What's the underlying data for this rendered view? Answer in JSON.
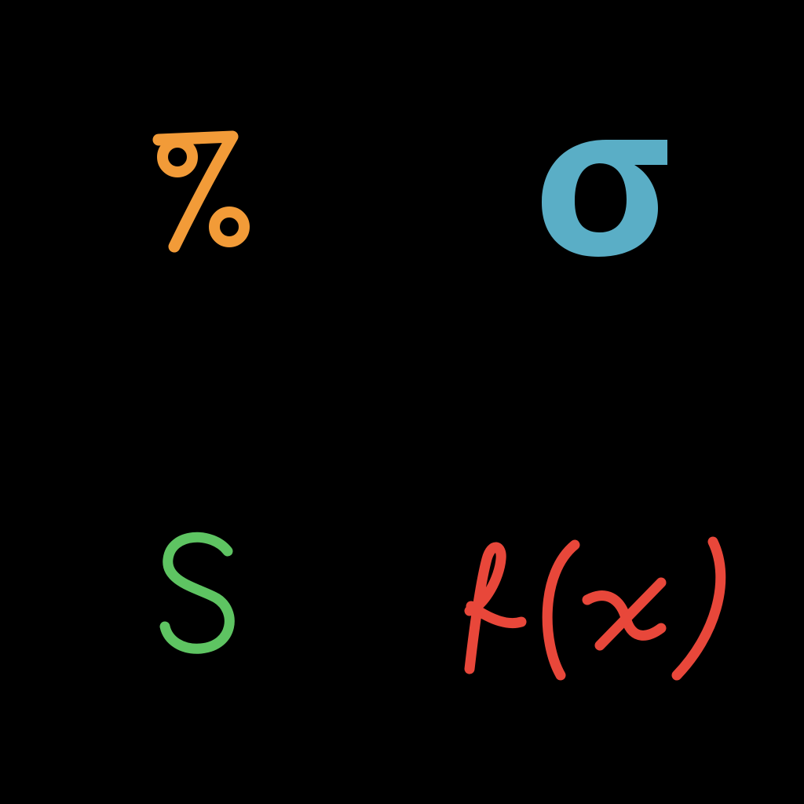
{
  "background_color": "#000000",
  "symbols": [
    {
      "name": "percent-symbol",
      "glyph": "%",
      "color": "#F29B38"
    },
    {
      "name": "sigma-symbol",
      "glyph": "σ",
      "color": "#5AAEC6"
    },
    {
      "name": "s-letter-symbol",
      "glyph": "S",
      "color": "#5EC462"
    },
    {
      "name": "function-notation-symbol",
      "glyph": "f(x)",
      "color": "#E8473A"
    }
  ]
}
